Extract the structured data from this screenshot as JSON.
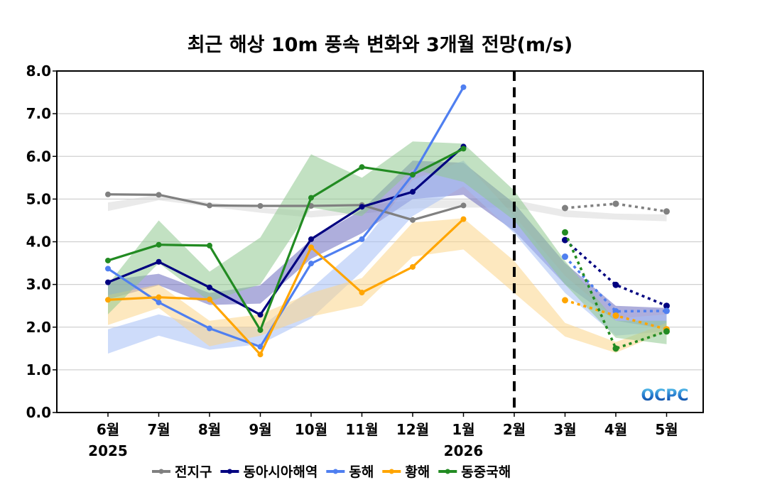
{
  "chart_data": {
    "type": "line",
    "title": "최근 해상 10m 풍속 변화와 3개월 전망(m/s)",
    "xlabel": "",
    "ylabel": "",
    "categories": [
      "6월",
      "7월",
      "8월",
      "9월",
      "10월",
      "11월",
      "12월",
      "1월",
      "2월",
      "3월",
      "4월",
      "5월"
    ],
    "year_labels": [
      {
        "category_index": 0,
        "label": "2025"
      },
      {
        "category_index": 7,
        "label": "2026"
      }
    ],
    "ylim": [
      0,
      8
    ],
    "yticks": [
      "0.0",
      "1.0",
      "2.0",
      "3.0",
      "4.0",
      "5.0",
      "6.0",
      "7.0",
      "8.0"
    ],
    "grid": true,
    "forecast_divider_category_index": 8,
    "legend_position": "bottom",
    "watermark": "OCPC",
    "series": [
      {
        "name": "전지구",
        "color": "#808080",
        "observed": [
          5.11,
          5.1,
          4.85,
          4.84,
          4.84,
          4.86,
          4.51,
          4.85
        ],
        "forecast": [
          4.79,
          4.89,
          4.71
        ],
        "band_color": "#d9d9d9",
        "band_low": [
          4.72,
          4.97,
          4.82,
          4.68,
          4.57,
          4.66,
          4.78,
          4.8,
          4.8,
          4.58,
          4.52,
          4.48
        ],
        "band_high": [
          4.92,
          5.1,
          4.92,
          4.8,
          4.72,
          4.84,
          4.98,
          4.98,
          4.98,
          4.74,
          4.66,
          4.64
        ]
      },
      {
        "name": "동아시아해역",
        "color": "#000080",
        "observed": [
          3.05,
          3.53,
          2.93,
          2.29,
          4.06,
          4.82,
          5.17,
          6.23
        ],
        "forecast": [
          4.04,
          2.99,
          2.5
        ],
        "band_color": "#6b6bc0",
        "band_low": [
          2.65,
          2.98,
          2.52,
          2.55,
          3.6,
          4.2,
          5.0,
          5.1,
          4.25,
          3.0,
          2.15,
          1.95
        ],
        "band_high": [
          3.1,
          3.25,
          2.8,
          2.98,
          4.05,
          4.75,
          5.9,
          5.85,
          4.9,
          3.5,
          2.5,
          2.45
        ]
      },
      {
        "name": "동해",
        "color": "#4f7ff0",
        "observed": [
          3.37,
          2.58,
          1.97,
          1.54,
          3.49,
          4.06,
          5.57,
          7.62
        ],
        "forecast": [
          3.65,
          2.37,
          2.38
        ],
        "band_color": "#a6bff5",
        "band_low": [
          1.38,
          1.8,
          1.47,
          1.6,
          2.2,
          3.3,
          4.6,
          5.3,
          4.2,
          2.8,
          1.8,
          1.9
        ],
        "band_high": [
          1.95,
          2.3,
          2.0,
          2.0,
          2.9,
          3.95,
          5.45,
          5.9,
          4.6,
          3.2,
          2.2,
          2.3
        ]
      },
      {
        "name": "황해",
        "color": "#ffa500",
        "observed": [
          2.64,
          2.7,
          2.65,
          1.36,
          3.87,
          2.81,
          3.41,
          4.53
        ],
        "forecast": [
          2.63,
          2.27,
          1.95
        ],
        "band_color": "#fcd58a",
        "band_low": [
          2.05,
          2.45,
          1.55,
          1.8,
          2.25,
          2.5,
          3.65,
          3.82,
          2.8,
          1.78,
          1.4,
          1.9
        ],
        "band_high": [
          2.75,
          3.0,
          2.15,
          2.3,
          2.8,
          3.15,
          4.45,
          4.55,
          3.55,
          2.1,
          1.65,
          2.1
        ]
      },
      {
        "name": "동중국해",
        "color": "#228b22",
        "observed": [
          3.56,
          3.93,
          3.91,
          1.93,
          5.03,
          5.75,
          5.57,
          6.18
        ],
        "forecast": [
          4.22,
          1.5,
          1.9
        ],
        "band_color": "#8fc98f",
        "band_low": [
          2.3,
          3.5,
          2.6,
          3.0,
          4.8,
          4.6,
          5.7,
          5.4,
          4.5,
          3.0,
          1.75,
          1.6
        ],
        "band_high": [
          3.0,
          4.5,
          3.3,
          4.1,
          6.05,
          5.5,
          6.35,
          6.3,
          5.2,
          3.55,
          2.15,
          2.15
        ]
      }
    ]
  }
}
